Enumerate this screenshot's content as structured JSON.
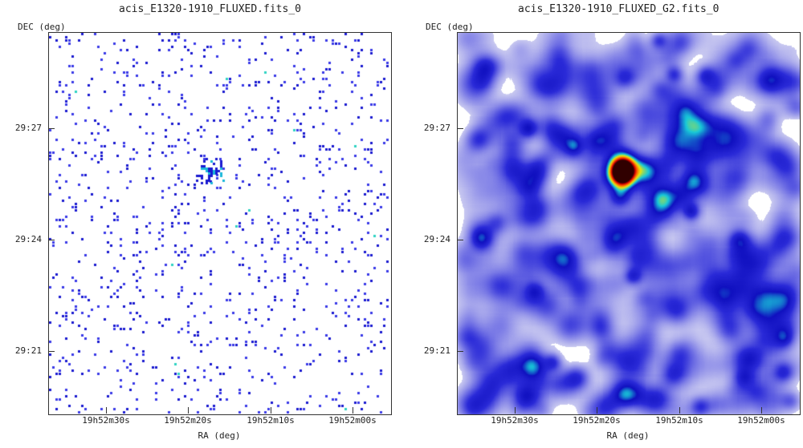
{
  "left_panel": {
    "title": "acis_E1320-1910_FLUXED.fits_0",
    "y_axis_label": "DEC (deg)",
    "x_axis_label": "RA (deg)",
    "y_ticks": [
      "29:27",
      "29:24",
      "29:21"
    ],
    "x_ticks": [
      "19h52m30s",
      "19h52m20s",
      "19h52m10s",
      "19h52m00s"
    ],
    "colormap": [
      "#ffffff",
      "#3a3ae8",
      "#1a1ad0",
      "#19b7d9",
      "#2ed3c3"
    ]
  },
  "right_panel": {
    "title": "acis_E1320-1910_FLUXED_G2.fits_0",
    "y_axis_label": "DEC (deg)",
    "x_axis_label": "RA (deg)",
    "y_ticks": [
      "29:27",
      "29:24",
      "29:21"
    ],
    "x_ticks": [
      "19h52m30s",
      "19h52m20s",
      "19h52m10s",
      "19h52m00s"
    ],
    "colormap": [
      "#ffffff",
      "#c8c8f0",
      "#7a7ae6",
      "#2a2ad8",
      "#1010c0",
      "#18c8d8",
      "#e6e610",
      "#ff6a00",
      "#d40000",
      "#300000"
    ]
  }
}
